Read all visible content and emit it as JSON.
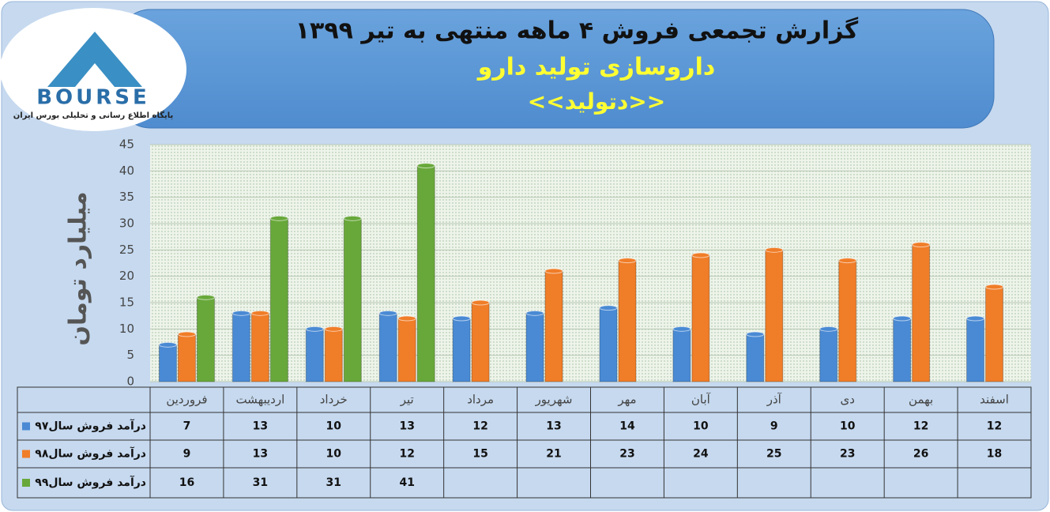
{
  "logo": {
    "mark": "BOURSE",
    "tagline": "پایگاه اطلاع رسانی و تحلیلی بورس ایران"
  },
  "chart_data": {
    "type": "bar",
    "title": "گزارش تجمعی فروش ۴ ماهه منتهی به تیر ۱۳۹۹",
    "subtitle": "داروسازی تولید دارو",
    "symbol": "<<دتولید>>",
    "y_label": "میلیارد تومان",
    "categories": [
      "فروردین",
      "اردیبهشت",
      "خرداد",
      "تیر",
      "مرداد",
      "شهریور",
      "مهر",
      "آبان",
      "آذر",
      "دی",
      "بهمن",
      "اسفند"
    ],
    "series": [
      {
        "name": "درآمد فروش سال۹۷",
        "color": "#4a8ad4",
        "values": [
          7,
          13,
          10,
          13,
          12,
          13,
          14,
          10,
          9,
          10,
          12,
          12
        ]
      },
      {
        "name": "درآمد فروش سال۹۸",
        "color": "#f07d28",
        "values": [
          9,
          13,
          10,
          12,
          15,
          21,
          23,
          24,
          25,
          23,
          26,
          18
        ]
      },
      {
        "name": "درآمد فروش سال۹۹",
        "color": "#68a83a",
        "values": [
          16,
          31,
          31,
          41,
          null,
          null,
          null,
          null,
          null,
          null,
          null,
          null
        ]
      }
    ],
    "ylim": [
      0,
      45
    ],
    "yticks": [
      0,
      5,
      10,
      15,
      20,
      25,
      30,
      35,
      40,
      45
    ],
    "grid": true
  }
}
